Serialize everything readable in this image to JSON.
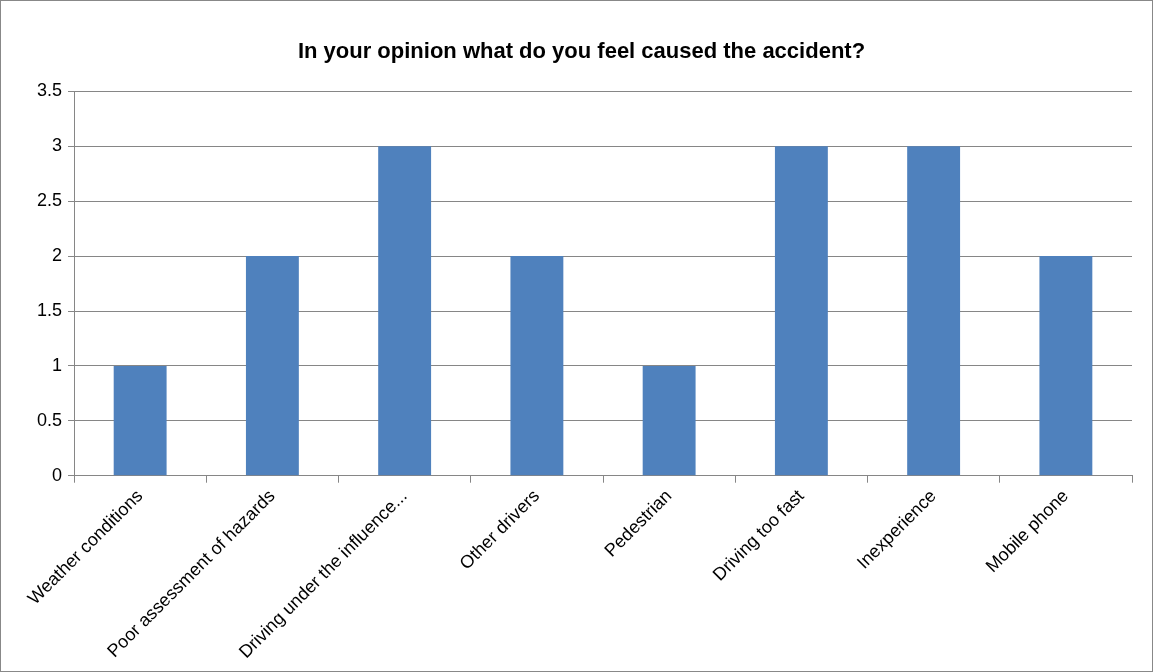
{
  "chart_data": {
    "type": "bar",
    "title": "In your opinion what do you feel caused the accident?",
    "categories": [
      "Weather conditions",
      "Poor assessment of hazards",
      "Driving under the influence...",
      "Other drivers",
      "Pedestrian",
      "Driving too fast",
      "Inexperience",
      "Mobile phone"
    ],
    "values": [
      1,
      2,
      3,
      2,
      1,
      3,
      3,
      2
    ],
    "color": "#4f81bd",
    "ylim": [
      0,
      3.5
    ],
    "yticks": [
      0,
      0.5,
      1,
      1.5,
      2,
      2.5,
      3,
      3.5
    ],
    "grid": "y",
    "legend": false
  }
}
